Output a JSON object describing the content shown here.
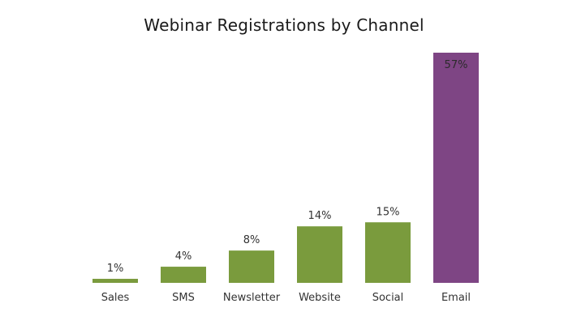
{
  "chart_data": {
    "type": "bar",
    "title": "Webinar Registrations by Channel",
    "xlabel": "",
    "ylabel": "",
    "categories": [
      "Sales",
      "SMS",
      "Newsletter",
      "Website",
      "Social",
      "Email"
    ],
    "values": [
      1,
      4,
      8,
      14,
      15,
      57
    ],
    "value_labels": [
      "1%",
      "4%",
      "8%",
      "14%",
      "15%",
      "57%"
    ],
    "ylim": [
      0,
      57
    ],
    "grid": false,
    "legend": "none",
    "colors": {
      "default": "#7a9b3d",
      "highlight": "#7e4584"
    },
    "highlight_category": "Email"
  }
}
